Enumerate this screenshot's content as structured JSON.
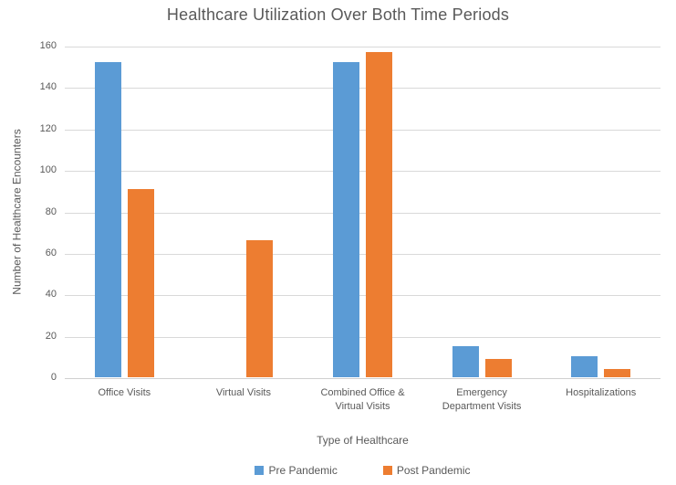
{
  "chart_data": {
    "type": "bar",
    "title": "Healthcare Utilization Over Both Time Periods",
    "xlabel": "Type of Healthcare",
    "ylabel": "Number of Healthcare Encounters",
    "categories": [
      "Office Visits",
      "Virtual Visits",
      "Combined Office & Virtual Visits",
      "Emergency Department Visits",
      "Hospitalizations"
    ],
    "series": [
      {
        "name": "Pre Pandemic",
        "color": "#5B9BD5",
        "values": [
          152,
          0,
          152,
          15,
          10
        ]
      },
      {
        "name": "Post Pandemic",
        "color": "#ED7D31",
        "values": [
          91,
          66,
          157,
          9,
          4
        ]
      }
    ],
    "ylim": [
      0,
      160
    ],
    "ytick_step": 20,
    "grid": "horizontal",
    "legend_position": "bottom",
    "colors": {
      "text": "#595959",
      "gridline": "#D9D9D9",
      "axis_line": "#D0D0D0",
      "background": "#FFFFFF"
    }
  }
}
